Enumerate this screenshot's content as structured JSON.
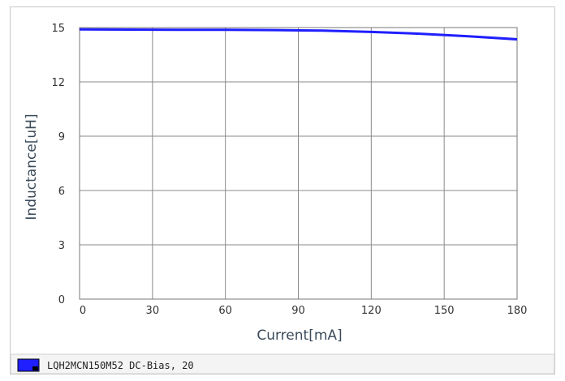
{
  "chart_data": {
    "type": "line",
    "xlabel": "Current[mA]",
    "ylabel": "Inductance[uH]",
    "xlim": [
      0,
      180
    ],
    "ylim": [
      0,
      15
    ],
    "xticks": [
      0,
      30,
      60,
      90,
      120,
      150,
      180
    ],
    "yticks": [
      0,
      3,
      6,
      9,
      12,
      15
    ],
    "grid": true,
    "legend_position": "bottom",
    "series": [
      {
        "name": "LQH2MCN150M52  DC-Bias, 20",
        "color": "#1f1fff",
        "x": [
          0,
          20,
          40,
          60,
          80,
          100,
          120,
          140,
          160,
          180
        ],
        "y": [
          14.9,
          14.89,
          14.88,
          14.88,
          14.86,
          14.83,
          14.76,
          14.66,
          14.52,
          14.35
        ]
      }
    ]
  }
}
